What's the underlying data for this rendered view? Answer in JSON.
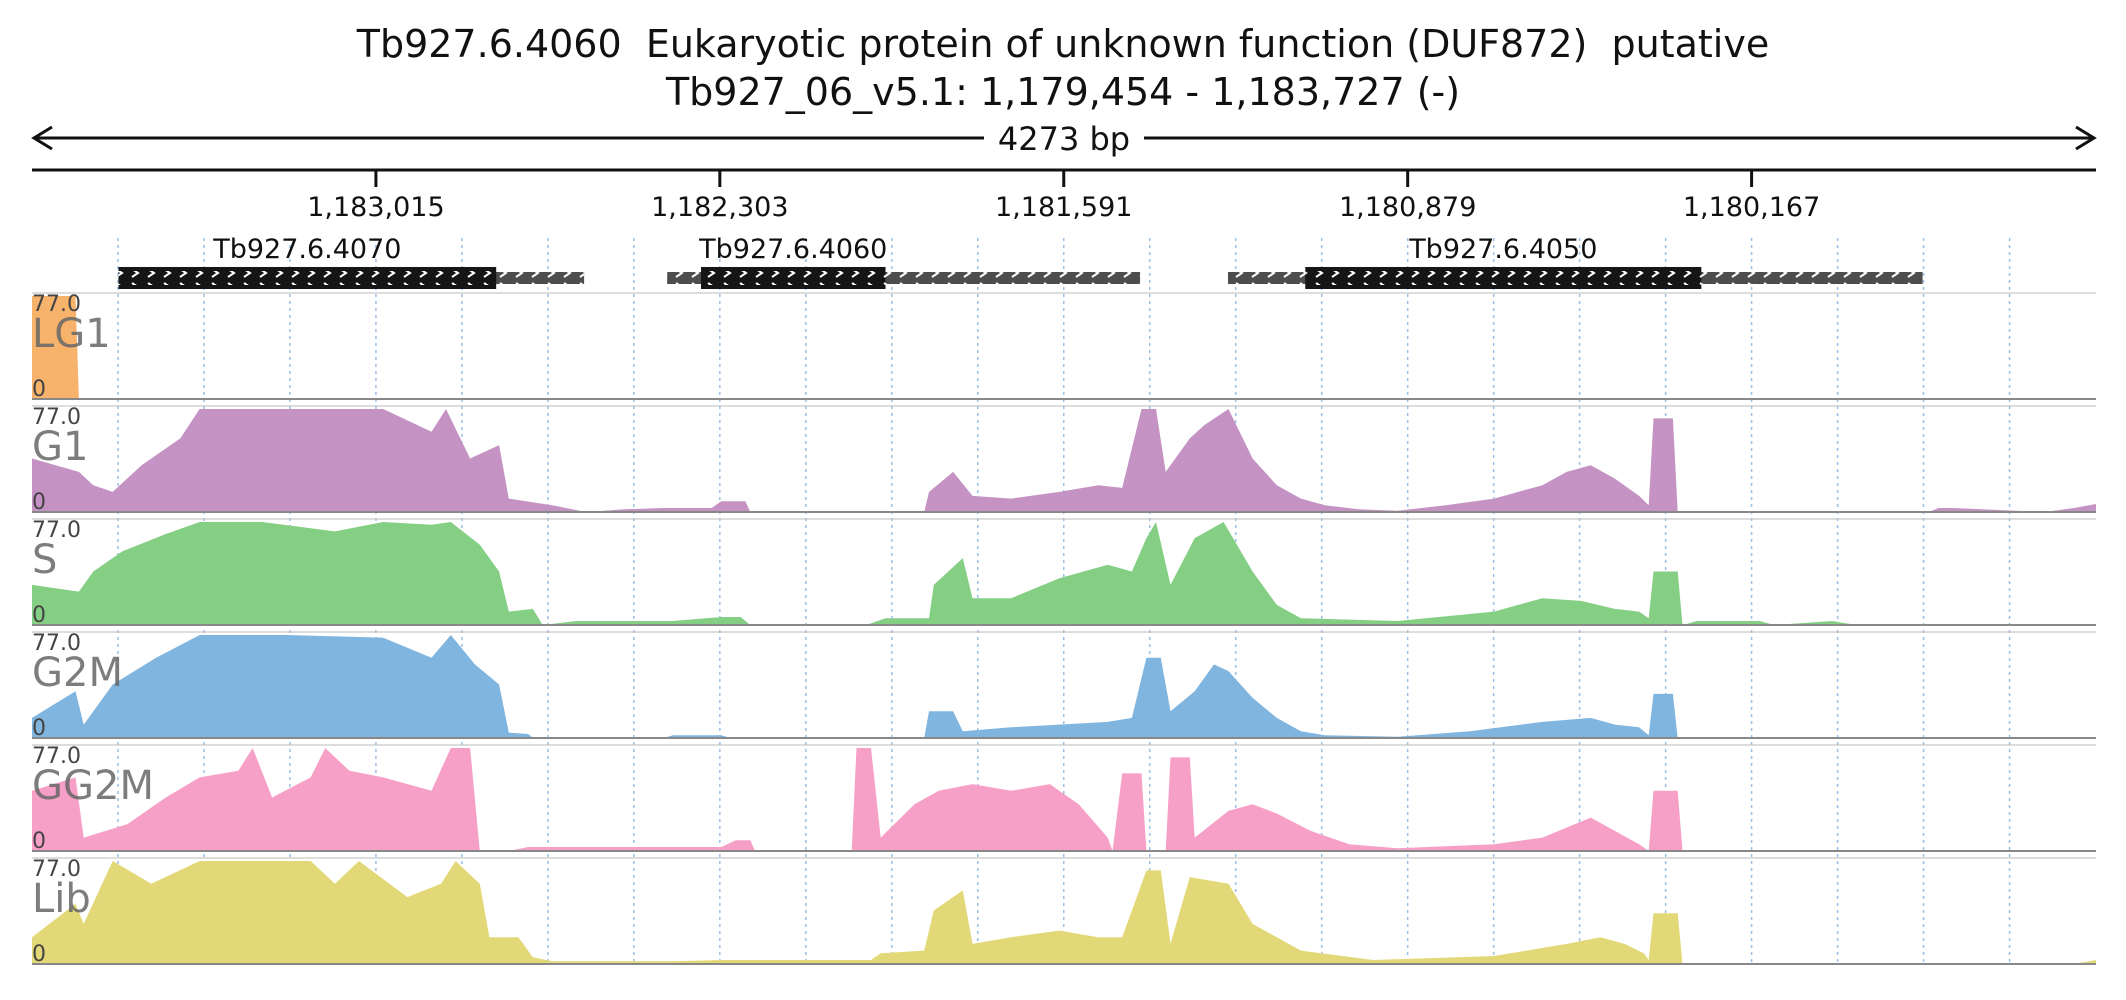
{
  "chart_data": {
    "type": "area",
    "title": "Tb927.6.4060  Eukaryotic protein of unknown function (DUF872)  putative",
    "subtitle": "Tb927_06_v5.1: 1,179,454 - 1,183,727 (-)",
    "span_label": "4273 bp",
    "x_range": [
      1183727,
      1179454
    ],
    "x_ticks": [
      "1,183,015",
      "1,182,303",
      "1,181,591",
      "1,180,879",
      "1,180,167"
    ],
    "y_range": [
      0,
      77.0
    ],
    "y_max_label": "77.0",
    "y_min_label": "0",
    "genes": [
      {
        "name": "Tb927.6.4070",
        "utr": [
          1183548,
          1182584
        ],
        "cds": [
          1183548,
          1182766
        ]
      },
      {
        "name": "Tb927.6.4060",
        "utr": [
          1182412,
          1181433
        ],
        "cds": [
          1182342,
          1181960
        ]
      },
      {
        "name": "Tb927.6.4050",
        "utr": [
          1181251,
          1179813
        ],
        "cds": [
          1181091,
          1180271
        ]
      }
    ],
    "series": [
      {
        "name": "LG1",
        "color": "#f7b36b",
        "points": [
          [
            1183727,
            77
          ],
          [
            1183637,
            77
          ],
          [
            1183630,
            0
          ],
          [
            1179454,
            0
          ]
        ]
      },
      {
        "name": "G1",
        "color": "#c493c4",
        "points": [
          [
            1183727,
            40
          ],
          [
            1183630,
            30
          ],
          [
            1183600,
            20
          ],
          [
            1183560,
            15
          ],
          [
            1183500,
            35
          ],
          [
            1183420,
            55
          ],
          [
            1183380,
            77
          ],
          [
            1183200,
            77
          ],
          [
            1183000,
            77
          ],
          [
            1182900,
            60
          ],
          [
            1182870,
            77
          ],
          [
            1182820,
            40
          ],
          [
            1182760,
            50
          ],
          [
            1182740,
            10
          ],
          [
            1182650,
            5
          ],
          [
            1182580,
            0
          ],
          [
            1182500,
            2
          ],
          [
            1182420,
            3
          ],
          [
            1182320,
            3
          ],
          [
            1182300,
            8
          ],
          [
            1182250,
            8
          ],
          [
            1182240,
            0
          ],
          [
            1181880,
            0
          ],
          [
            1181870,
            15
          ],
          [
            1181820,
            30
          ],
          [
            1181780,
            12
          ],
          [
            1181700,
            10
          ],
          [
            1181600,
            15
          ],
          [
            1181520,
            20
          ],
          [
            1181470,
            18
          ],
          [
            1181430,
            77
          ],
          [
            1181400,
            77
          ],
          [
            1181380,
            30
          ],
          [
            1181330,
            55
          ],
          [
            1181300,
            65
          ],
          [
            1181250,
            77
          ],
          [
            1181200,
            40
          ],
          [
            1181150,
            20
          ],
          [
            1181100,
            10
          ],
          [
            1181050,
            5
          ],
          [
            1180980,
            2
          ],
          [
            1180900,
            1
          ],
          [
            1180800,
            5
          ],
          [
            1180700,
            10
          ],
          [
            1180600,
            20
          ],
          [
            1180550,
            30
          ],
          [
            1180500,
            35
          ],
          [
            1180450,
            25
          ],
          [
            1180400,
            12
          ],
          [
            1180380,
            5
          ],
          [
            1180370,
            70
          ],
          [
            1180330,
            70
          ],
          [
            1180320,
            0
          ],
          [
            1179800,
            0
          ],
          [
            1179780,
            3
          ],
          [
            1179750,
            3
          ],
          [
            1179560,
            0
          ],
          [
            1179500,
            3
          ],
          [
            1179454,
            6
          ]
        ]
      },
      {
        "name": "S",
        "color": "#85cf85",
        "points": [
          [
            1183727,
            30
          ],
          [
            1183630,
            25
          ],
          [
            1183600,
            40
          ],
          [
            1183540,
            55
          ],
          [
            1183450,
            68
          ],
          [
            1183380,
            77
          ],
          [
            1183250,
            77
          ],
          [
            1183100,
            70
          ],
          [
            1183000,
            77
          ],
          [
            1182900,
            75
          ],
          [
            1182860,
            77
          ],
          [
            1182800,
            60
          ],
          [
            1182760,
            40
          ],
          [
            1182740,
            10
          ],
          [
            1182690,
            12
          ],
          [
            1182670,
            0
          ],
          [
            1182600,
            3
          ],
          [
            1182400,
            3
          ],
          [
            1182300,
            6
          ],
          [
            1182260,
            6
          ],
          [
            1182240,
            0
          ],
          [
            1182000,
            0
          ],
          [
            1181960,
            5
          ],
          [
            1181870,
            5
          ],
          [
            1181860,
            30
          ],
          [
            1181800,
            50
          ],
          [
            1181780,
            20
          ],
          [
            1181700,
            20
          ],
          [
            1181600,
            35
          ],
          [
            1181500,
            45
          ],
          [
            1181450,
            40
          ],
          [
            1181420,
            65
          ],
          [
            1181400,
            77
          ],
          [
            1181370,
            30
          ],
          [
            1181320,
            65
          ],
          [
            1181260,
            77
          ],
          [
            1181200,
            40
          ],
          [
            1181150,
            15
          ],
          [
            1181100,
            5
          ],
          [
            1180900,
            3
          ],
          [
            1180700,
            10
          ],
          [
            1180600,
            20
          ],
          [
            1180520,
            18
          ],
          [
            1180450,
            12
          ],
          [
            1180400,
            10
          ],
          [
            1180380,
            5
          ],
          [
            1180370,
            40
          ],
          [
            1180320,
            40
          ],
          [
            1180310,
            0
          ],
          [
            1180280,
            3
          ],
          [
            1180150,
            3
          ],
          [
            1180120,
            0
          ],
          [
            1180000,
            3
          ],
          [
            1179950,
            0
          ],
          [
            1179454,
            0
          ]
        ]
      },
      {
        "name": "G2M",
        "color": "#80b5e0",
        "points": [
          [
            1183727,
            15
          ],
          [
            1183637,
            35
          ],
          [
            1183620,
            10
          ],
          [
            1183560,
            40
          ],
          [
            1183470,
            60
          ],
          [
            1183380,
            77
          ],
          [
            1183200,
            77
          ],
          [
            1183000,
            75
          ],
          [
            1182900,
            60
          ],
          [
            1182860,
            77
          ],
          [
            1182810,
            55
          ],
          [
            1182760,
            40
          ],
          [
            1182740,
            4
          ],
          [
            1182700,
            3
          ],
          [
            1182690,
            0
          ],
          [
            1182420,
            0
          ],
          [
            1182400,
            2
          ],
          [
            1182300,
            2
          ],
          [
            1182280,
            0
          ],
          [
            1181880,
            0
          ],
          [
            1181870,
            20
          ],
          [
            1181820,
            20
          ],
          [
            1181800,
            5
          ],
          [
            1181700,
            8
          ],
          [
            1181600,
            10
          ],
          [
            1181500,
            12
          ],
          [
            1181450,
            15
          ],
          [
            1181420,
            60
          ],
          [
            1181390,
            60
          ],
          [
            1181370,
            20
          ],
          [
            1181320,
            35
          ],
          [
            1181280,
            55
          ],
          [
            1181250,
            50
          ],
          [
            1181200,
            30
          ],
          [
            1181150,
            15
          ],
          [
            1181100,
            5
          ],
          [
            1181050,
            2
          ],
          [
            1180900,
            1
          ],
          [
            1180750,
            5
          ],
          [
            1180600,
            12
          ],
          [
            1180500,
            15
          ],
          [
            1180450,
            10
          ],
          [
            1180400,
            8
          ],
          [
            1180380,
            2
          ],
          [
            1180370,
            33
          ],
          [
            1180330,
            33
          ],
          [
            1180320,
            0
          ],
          [
            1179454,
            0
          ]
        ]
      },
      {
        "name": "GG2M",
        "color": "#f7a0c7",
        "points": [
          [
            1183727,
            45
          ],
          [
            1183637,
            55
          ],
          [
            1183620,
            10
          ],
          [
            1183530,
            20
          ],
          [
            1183450,
            40
          ],
          [
            1183380,
            55
          ],
          [
            1183300,
            60
          ],
          [
            1183270,
            77
          ],
          [
            1183230,
            40
          ],
          [
            1183150,
            55
          ],
          [
            1183120,
            77
          ],
          [
            1183070,
            60
          ],
          [
            1183000,
            55
          ],
          [
            1182900,
            45
          ],
          [
            1182860,
            77
          ],
          [
            1182820,
            77
          ],
          [
            1182800,
            0
          ],
          [
            1182740,
            0
          ],
          [
            1182700,
            3
          ],
          [
            1182500,
            3
          ],
          [
            1182300,
            3
          ],
          [
            1182270,
            8
          ],
          [
            1182240,
            8
          ],
          [
            1182230,
            0
          ],
          [
            1182030,
            0
          ],
          [
            1182020,
            77
          ],
          [
            1181990,
            77
          ],
          [
            1181970,
            10
          ],
          [
            1181900,
            35
          ],
          [
            1181850,
            45
          ],
          [
            1181780,
            50
          ],
          [
            1181700,
            45
          ],
          [
            1181620,
            50
          ],
          [
            1181560,
            35
          ],
          [
            1181500,
            10
          ],
          [
            1181490,
            0
          ],
          [
            1181470,
            58
          ],
          [
            1181430,
            58
          ],
          [
            1181420,
            0
          ],
          [
            1181380,
            0
          ],
          [
            1181370,
            70
          ],
          [
            1181330,
            70
          ],
          [
            1181320,
            10
          ],
          [
            1181250,
            30
          ],
          [
            1181200,
            35
          ],
          [
            1181150,
            28
          ],
          [
            1181080,
            15
          ],
          [
            1181000,
            5
          ],
          [
            1180900,
            2
          ],
          [
            1180700,
            5
          ],
          [
            1180600,
            10
          ],
          [
            1180500,
            25
          ],
          [
            1180450,
            15
          ],
          [
            1180400,
            5
          ],
          [
            1180380,
            0
          ],
          [
            1180370,
            45
          ],
          [
            1180320,
            45
          ],
          [
            1180310,
            0
          ],
          [
            1179454,
            0
          ]
        ]
      },
      {
        "name": "Lib",
        "color": "#e3d877",
        "points": [
          [
            1183727,
            20
          ],
          [
            1183637,
            45
          ],
          [
            1183620,
            30
          ],
          [
            1183560,
            77
          ],
          [
            1183480,
            60
          ],
          [
            1183380,
            77
          ],
          [
            1183250,
            77
          ],
          [
            1183150,
            77
          ],
          [
            1183100,
            60
          ],
          [
            1183050,
            77
          ],
          [
            1182950,
            50
          ],
          [
            1182880,
            60
          ],
          [
            1182850,
            77
          ],
          [
            1182800,
            60
          ],
          [
            1182780,
            20
          ],
          [
            1182720,
            20
          ],
          [
            1182690,
            5
          ],
          [
            1182650,
            2
          ],
          [
            1182400,
            2
          ],
          [
            1182300,
            3
          ],
          [
            1181990,
            3
          ],
          [
            1181970,
            8
          ],
          [
            1181880,
            10
          ],
          [
            1181860,
            40
          ],
          [
            1181800,
            55
          ],
          [
            1181780,
            15
          ],
          [
            1181700,
            20
          ],
          [
            1181600,
            25
          ],
          [
            1181520,
            20
          ],
          [
            1181470,
            20
          ],
          [
            1181420,
            70
          ],
          [
            1181390,
            70
          ],
          [
            1181370,
            15
          ],
          [
            1181330,
            65
          ],
          [
            1181250,
            60
          ],
          [
            1181200,
            30
          ],
          [
            1181100,
            10
          ],
          [
            1180950,
            3
          ],
          [
            1180700,
            6
          ],
          [
            1180550,
            15
          ],
          [
            1180480,
            20
          ],
          [
            1180430,
            15
          ],
          [
            1180390,
            8
          ],
          [
            1180380,
            3
          ],
          [
            1180370,
            38
          ],
          [
            1180320,
            38
          ],
          [
            1180310,
            0
          ],
          [
            1179500,
            0
          ],
          [
            1179454,
            3
          ]
        ]
      }
    ]
  }
}
